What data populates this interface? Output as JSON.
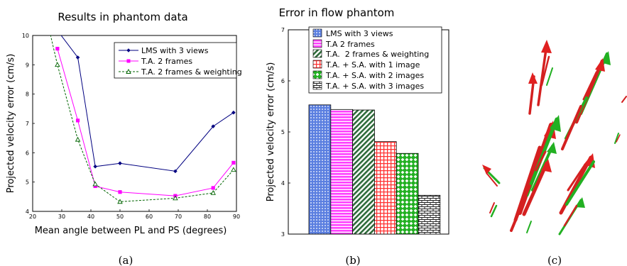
{
  "panel_a": {
    "caption": "(a)",
    "chart_data": {
      "type": "line",
      "title": "Results in phantom data",
      "xlabel": "Mean angle between PL and PS (degrees)",
      "ylabel": "Projected velocity error (cm/s)",
      "xlim": [
        20,
        90
      ],
      "ylim": [
        4,
        10
      ],
      "xticks": [
        "20",
        "30",
        "40",
        "50",
        "60",
        "70",
        "80",
        "90"
      ],
      "yticks": [
        "4",
        "5",
        "6",
        "7",
        "8",
        "9",
        "10"
      ],
      "grid": false,
      "legend_position": "top-right",
      "series": [
        {
          "name": "LMS with 3 views",
          "color": "#000080",
          "marker": "diamond",
          "dash": "solid",
          "x": [
            26,
            35.5,
            41.5,
            50,
            69,
            82,
            89
          ],
          "y": [
            10.5,
            9.25,
            5.53,
            5.64,
            5.37,
            6.9,
            7.37
          ]
        },
        {
          "name": "T.A. 2 frames",
          "color": "#ff00ff",
          "marker": "square",
          "dash": "solid",
          "x": [
            28.5,
            35.5,
            41.5,
            50,
            69,
            82,
            89
          ],
          "y": [
            9.55,
            7.1,
            4.86,
            4.66,
            4.53,
            4.8,
            5.66
          ]
        },
        {
          "name": "T.A. 2 frames & weighting",
          "color": "#006400",
          "marker": "triangle",
          "dash": "dashed",
          "x": [
            25,
            28.5,
            35.5,
            41.5,
            50,
            69,
            82,
            89
          ],
          "y": [
            10.5,
            9.0,
            6.45,
            4.93,
            4.33,
            4.45,
            4.63,
            5.42
          ]
        }
      ]
    }
  },
  "panel_b": {
    "caption": "(b)",
    "chart_data": {
      "type": "bar",
      "title": "Error in flow phantom",
      "xlabel": "",
      "ylabel": "Projected velocity error (cm/s)",
      "ylim": [
        3,
        7
      ],
      "yticks": [
        "3",
        "4",
        "5",
        "6",
        "7"
      ],
      "legend_position": "top-left",
      "series": [
        {
          "name": "LMS with 3 views",
          "value": 5.53,
          "color": "#5b7fe0",
          "pattern": "dots"
        },
        {
          "name": "T.A 2 frames",
          "value": 5.44,
          "color": "#ff40ff",
          "pattern": "horizontal-stripes"
        },
        {
          "name": "T.A.  2 frames & weighting",
          "value": 5.43,
          "color": "#2e6b3a",
          "pattern": "diagonal-stripes"
        },
        {
          "name": "T.A. + S.A. with 1 image",
          "value": 4.81,
          "color": "#ff3030",
          "pattern": "grid"
        },
        {
          "name": "T.A. + S.A. with 2 images",
          "value": 4.58,
          "color": "#22b022",
          "pattern": "diamond-checks"
        },
        {
          "name": "T.A. + S.A. with 3 images",
          "value": 3.76,
          "color": "#222222",
          "pattern": "bricks"
        }
      ]
    }
  },
  "panel_c": {
    "caption": "(c)",
    "image": "3d-velocity-vector-field-red-green-arrows"
  }
}
